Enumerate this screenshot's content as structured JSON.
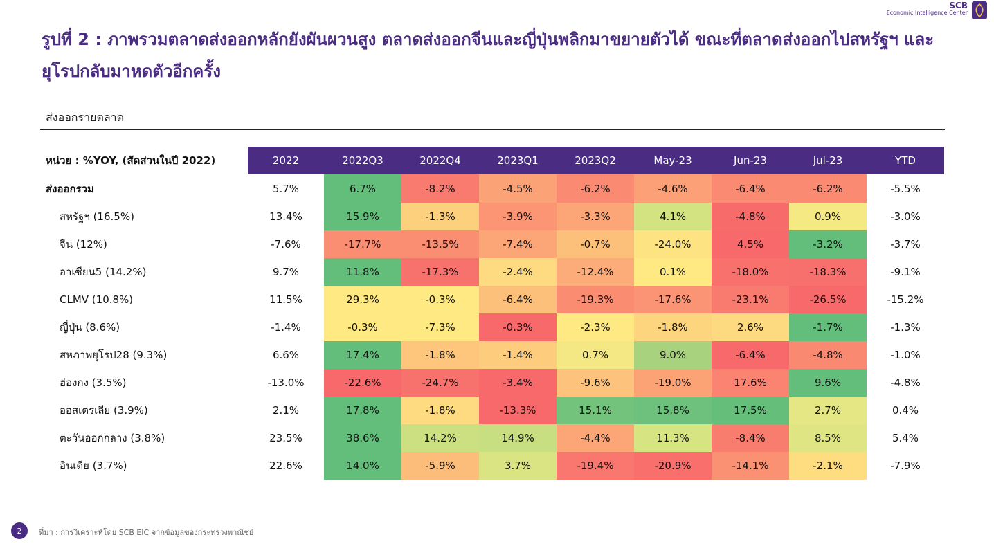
{
  "brand": {
    "name": "SCB",
    "subtitle": "Economic Intelligence Center",
    "color": "#4a2c82",
    "icon": "scb-temple-icon"
  },
  "title": "รูปที่ 2 : ภาพรวมตลาดส่งออกหลักยังผันผวนสูง ตลาดส่งออกจีนและญี่ปุ่นพลิกมาขยายตัวได้ ขณะที่ตลาดส่งออกไปสหรัฐฯ และยุโรปกลับมาหดตัวอีกครั้ง",
  "subtitle": "ส่งออกรายตลาด",
  "table": {
    "unit_label": "หน่วย : %YOY, (สัดส่วนในปี 2022)",
    "columns": [
      "2022",
      "2022Q3",
      "2022Q4",
      "2023Q1",
      "2023Q2",
      "May-23",
      "Jun-23",
      "Jul-23",
      "YTD"
    ],
    "rows": [
      {
        "label": "ส่งออกรวม",
        "values": [
          "5.7%",
          "6.7%",
          "-8.2%",
          "-4.5%",
          "-6.2%",
          "-4.6%",
          "-6.4%",
          "-6.2%",
          "-5.5%"
        ],
        "colors": [
          "#f97a6e",
          "#fca277",
          "#fa8b72",
          "#fca177",
          "#fa8a72",
          "#fa8b72"
        ]
      },
      {
        "label": "สหรัฐฯ (16.5%)",
        "values": [
          "13.4%",
          "15.9%",
          "-1.3%",
          "-3.9%",
          "-3.3%",
          "4.1%",
          "-4.8%",
          "0.9%",
          "-3.0%"
        ],
        "colors": [
          "#fdd07e",
          "#fb9574",
          "#fca577",
          "#d3e381",
          "#f86b6b",
          "#f5e984"
        ]
      },
      {
        "label": "จีน (12%)",
        "values": [
          "-7.6%",
          "-17.7%",
          "-13.5%",
          "-7.4%",
          "-0.7%",
          "-24.0%",
          "4.5%",
          "-3.2%",
          "-3.7%"
        ],
        "colors": [
          "#fa8e73",
          "#fca577",
          "#fdc07b",
          "#fee382",
          "#f8696b",
          "#63be7b",
          "#fdd07e"
        ]
      },
      {
        "label": "อาเซียน5 (14.2%)",
        "values": [
          "9.7%",
          "11.8%",
          "-17.3%",
          "-2.4%",
          "-12.4%",
          "0.1%",
          "-18.0%",
          "-18.3%",
          "-9.1%"
        ],
        "colors": [
          "#f8726d",
          "#fedb80",
          "#fcac78",
          "#fee983",
          "#f8716d",
          "#f8706d"
        ]
      },
      {
        "label": "CLMV (10.8%)",
        "values": [
          "11.5%",
          "29.3%",
          "-0.3%",
          "-6.4%",
          "-19.3%",
          "-17.6%",
          "-23.1%",
          "-26.5%",
          "-15.2%"
        ],
        "colors": [
          "#fee983",
          "#fdc07b",
          "#fa8c72",
          "#fb9474",
          "#f97a6e",
          "#f8696b"
        ]
      },
      {
        "label": "ญี่ปุ่น (8.6%)",
        "values": [
          "-1.4%",
          "-0.3%",
          "-7.3%",
          "-0.3%",
          "-2.3%",
          "-1.8%",
          "2.6%",
          "-1.7%",
          "-1.3%"
        ],
        "colors": [
          "#fee983",
          "#f8696b",
          "#fee983",
          "#fdd57f",
          "#fdda80",
          "#63be7b",
          "#fddc80"
        ]
      },
      {
        "label": "สหภาพยุโรป28 (9.3%)",
        "values": [
          "6.6%",
          "17.4%",
          "-1.8%",
          "-1.4%",
          "0.7%",
          "9.0%",
          "-6.4%",
          "-4.8%",
          "-1.0%"
        ],
        "colors": [
          "#fdc67c",
          "#fdcc7d",
          "#f4e884",
          "#a9d27f",
          "#f8696b",
          "#fa8971"
        ]
      },
      {
        "label": "ฮ่องกง (3.5%)",
        "values": [
          "-13.0%",
          "-22.6%",
          "-24.7%",
          "-3.4%",
          "-9.6%",
          "-19.0%",
          "17.6%",
          "9.6%",
          "-4.8%"
        ],
        "colors": [
          "#f8726d",
          "#f8696b",
          "#fdc37c",
          "#fca376",
          "#fa8371",
          "#63be7b",
          "#a9d27f"
        ]
      },
      {
        "label": "ออสเตรเลีย (3.9%)",
        "values": [
          "2.1%",
          "17.8%",
          "-1.8%",
          "-13.3%",
          "15.1%",
          "15.8%",
          "17.5%",
          "2.7%",
          "0.4%"
        ],
        "colors": [
          "#fedb80",
          "#f8696b",
          "#74c37c",
          "#6dc17c",
          "#65bf7b",
          "#e4e783"
        ]
      },
      {
        "label": "ตะวันออกกลาง (3.8%)",
        "values": [
          "23.5%",
          "38.6%",
          "14.2%",
          "14.9%",
          "-4.4%",
          "11.3%",
          "-8.4%",
          "8.5%",
          "5.4%"
        ],
        "colors": [
          "#cde081",
          "#c8df81",
          "#fca577",
          "#d7e482",
          "#f87d6f",
          "#dee582"
        ]
      },
      {
        "label": "อินเดีย (3.7%)",
        "values": [
          "22.6%",
          "14.0%",
          "-5.9%",
          "3.7%",
          "-19.4%",
          "-20.9%",
          "-14.1%",
          "-2.1%",
          "-7.9%"
        ],
        "colors": [
          "#fcbd7b",
          "#dae482",
          "#f9776e",
          "#f86f6c",
          "#fa9173",
          "#fedd81"
        ]
      }
    ],
    "green_first_column": "#63be7b"
  },
  "footer": {
    "page": "2",
    "source": "ที่มา : การวิเคราะห์โดย SCB EIC จากข้อมูลของกระทรวงพาณิชย์"
  }
}
